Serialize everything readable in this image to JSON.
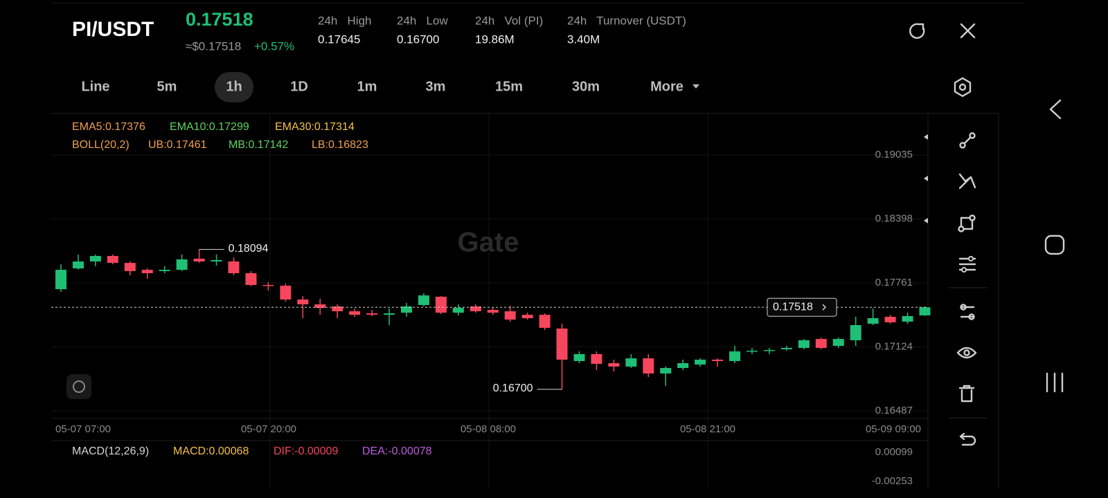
{
  "header": {
    "pair": "PI/USDT",
    "price": "0.17518",
    "approx": "≈$0.17518",
    "change": "+0.57%",
    "stats": [
      {
        "label": "24h   High",
        "value": "0.17645"
      },
      {
        "label": "24h   Low",
        "value": "0.16700"
      },
      {
        "label": "24h   Vol (PI)",
        "value": "19.86M"
      },
      {
        "label": "24h   Turnover (USDT)",
        "value": "3.40M"
      }
    ]
  },
  "tabs": [
    "Line",
    "5m",
    "1h",
    "1D",
    "1m",
    "3m",
    "15m",
    "30m",
    "More"
  ],
  "selected_tab": "1h",
  "indicators": {
    "ema": [
      "EMA5:0.17376",
      "EMA10:0.17299",
      "EMA30:0.17314"
    ],
    "boll": [
      "BOLL(20,2)",
      "UB:0.17461",
      "MB:0.17142",
      "LB:0.16823"
    ],
    "macd": [
      "MACD(12,26,9)",
      "MACD:0.00068",
      "DIF:-0.00009",
      "DEA:-0.00078"
    ],
    "macd_ticks": [
      "0.00099",
      "-0.00253"
    ]
  },
  "watermark": "Gate",
  "chart_data": {
    "type": "candlestick",
    "up_color": "#1fbf75",
    "down_color": "#f6465d",
    "ylim": [
      0.1641,
      0.19442
    ],
    "yticks": [
      0.19035,
      0.18398,
      0.17761,
      0.17124,
      0.16487
    ],
    "xtick_labels": [
      "05-07 07:00",
      "05-07 20:00",
      "05-08 08:00",
      "05-08 21:00",
      "05-09 09:00"
    ],
    "high_label": "0.18094",
    "low_label": "0.16700",
    "last_label": "0.17518",
    "candles": [
      {
        "open": 0.17698,
        "high": 0.17946,
        "low": 0.17671,
        "close": 0.17891
      },
      {
        "open": 0.17905,
        "high": 0.18043,
        "low": 0.17891,
        "close": 0.17974
      },
      {
        "open": 0.17974,
        "high": 0.18043,
        "low": 0.17926,
        "close": 0.18029
      },
      {
        "open": 0.18029,
        "high": 0.18043,
        "low": 0.17946,
        "close": 0.1796
      },
      {
        "open": 0.1796,
        "high": 0.17974,
        "low": 0.17836,
        "close": 0.17878
      },
      {
        "open": 0.17891,
        "high": 0.17905,
        "low": 0.17802,
        "close": 0.17857
      },
      {
        "open": 0.17878,
        "high": 0.17926,
        "low": 0.17857,
        "close": 0.17891
      },
      {
        "open": 0.17891,
        "high": 0.18043,
        "low": 0.17878,
        "close": 0.17995
      },
      {
        "open": 0.18002,
        "high": 0.18094,
        "low": 0.1796,
        "close": 0.17974
      },
      {
        "open": 0.17974,
        "high": 0.18043,
        "low": 0.17933,
        "close": 0.17988
      },
      {
        "open": 0.17974,
        "high": 0.18015,
        "low": 0.17836,
        "close": 0.17857
      },
      {
        "open": 0.17857,
        "high": 0.17878,
        "low": 0.17726,
        "close": 0.1774
      },
      {
        "open": 0.1774,
        "high": 0.17767,
        "low": 0.17685,
        "close": 0.17733
      },
      {
        "open": 0.17733,
        "high": 0.17754,
        "low": 0.17574,
        "close": 0.17595
      },
      {
        "open": 0.17595,
        "high": 0.17629,
        "low": 0.17409,
        "close": 0.17547
      },
      {
        "open": 0.17547,
        "high": 0.17602,
        "low": 0.17443,
        "close": 0.17512
      },
      {
        "open": 0.17526,
        "high": 0.17547,
        "low": 0.17409,
        "close": 0.17478
      },
      {
        "open": 0.17478,
        "high": 0.17505,
        "low": 0.17423,
        "close": 0.17443
      },
      {
        "open": 0.17457,
        "high": 0.17492,
        "low": 0.1743,
        "close": 0.17443
      },
      {
        "open": 0.17443,
        "high": 0.17505,
        "low": 0.1734,
        "close": 0.17457
      },
      {
        "open": 0.17464,
        "high": 0.17561,
        "low": 0.17423,
        "close": 0.17526
      },
      {
        "open": 0.1754,
        "high": 0.17657,
        "low": 0.17526,
        "close": 0.17636
      },
      {
        "open": 0.17623,
        "high": 0.17629,
        "low": 0.1745,
        "close": 0.17464
      },
      {
        "open": 0.17464,
        "high": 0.17547,
        "low": 0.17437,
        "close": 0.17512
      },
      {
        "open": 0.17526,
        "high": 0.17547,
        "low": 0.17464,
        "close": 0.17478
      },
      {
        "open": 0.17492,
        "high": 0.17512,
        "low": 0.17443,
        "close": 0.17464
      },
      {
        "open": 0.17478,
        "high": 0.17533,
        "low": 0.17375,
        "close": 0.17395
      },
      {
        "open": 0.17443,
        "high": 0.17464,
        "low": 0.17395,
        "close": 0.17409
      },
      {
        "open": 0.17443,
        "high": 0.17457,
        "low": 0.17292,
        "close": 0.17313
      },
      {
        "open": 0.17306,
        "high": 0.17354,
        "low": 0.167,
        "close": 0.16996
      },
      {
        "open": 0.16982,
        "high": 0.17078,
        "low": 0.16961,
        "close": 0.17051
      },
      {
        "open": 0.17051,
        "high": 0.17078,
        "low": 0.16892,
        "close": 0.16954
      },
      {
        "open": 0.16961,
        "high": 0.16996,
        "low": 0.16878,
        "close": 0.16927
      },
      {
        "open": 0.16927,
        "high": 0.17051,
        "low": 0.16913,
        "close": 0.17009
      },
      {
        "open": 0.17009,
        "high": 0.17051,
        "low": 0.16823,
        "close": 0.16858
      },
      {
        "open": 0.16858,
        "high": 0.16927,
        "low": 0.16734,
        "close": 0.16913
      },
      {
        "open": 0.16913,
        "high": 0.16996,
        "low": 0.16892,
        "close": 0.16961
      },
      {
        "open": 0.16947,
        "high": 0.17009,
        "low": 0.16927,
        "close": 0.16996
      },
      {
        "open": 0.16996,
        "high": 0.17009,
        "low": 0.16927,
        "close": 0.16982
      },
      {
        "open": 0.16982,
        "high": 0.17133,
        "low": 0.16961,
        "close": 0.17078
      },
      {
        "open": 0.17078,
        "high": 0.17113,
        "low": 0.17051,
        "close": 0.17085
      },
      {
        "open": 0.17085,
        "high": 0.17113,
        "low": 0.17051,
        "close": 0.17092
      },
      {
        "open": 0.17099,
        "high": 0.17133,
        "low": 0.17085,
        "close": 0.17113
      },
      {
        "open": 0.17113,
        "high": 0.17202,
        "low": 0.17099,
        "close": 0.17189
      },
      {
        "open": 0.17202,
        "high": 0.17216,
        "low": 0.17099,
        "close": 0.17113
      },
      {
        "open": 0.17133,
        "high": 0.17216,
        "low": 0.17113,
        "close": 0.17202
      },
      {
        "open": 0.17189,
        "high": 0.17423,
        "low": 0.17133,
        "close": 0.1734
      },
      {
        "open": 0.17354,
        "high": 0.17505,
        "low": 0.1734,
        "close": 0.17409
      },
      {
        "open": 0.17423,
        "high": 0.17443,
        "low": 0.17354,
        "close": 0.17368
      },
      {
        "open": 0.17375,
        "high": 0.17464,
        "low": 0.17354,
        "close": 0.1743
      },
      {
        "open": 0.17437,
        "high": 0.17526,
        "low": 0.1743,
        "close": 0.17518
      }
    ]
  }
}
